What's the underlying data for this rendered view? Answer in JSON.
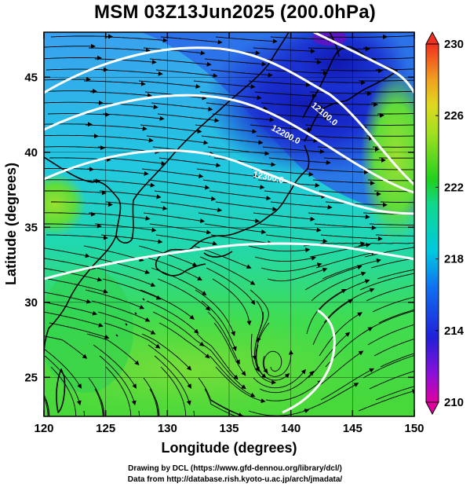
{
  "title": "MSM 03Z13Jun2025 (200.0hPa)",
  "map": {
    "lon_range": [
      120,
      150
    ],
    "lat_range": [
      22.4,
      48
    ],
    "xlabel": "Longitude (degrees)",
    "ylabel": "Latitude  (degrees)",
    "x_ticks": [
      "120",
      "125",
      "130",
      "135",
      "140",
      "145",
      "150"
    ],
    "x_tick_values": [
      120,
      125,
      130,
      135,
      140,
      145,
      150
    ],
    "y_ticks": [
      "25",
      "30",
      "35",
      "40",
      "45"
    ],
    "y_tick_values": [
      25,
      30,
      35,
      40,
      45
    ],
    "contour_labels": [
      "12100.0",
      "12200.0",
      "12300.0"
    ],
    "field_colors": {
      "low": "#1f2fd0",
      "mid": "#00d0d8",
      "high": "#40e040",
      "highest": "#a0e020"
    }
  },
  "colorbar": {
    "ticks": [
      "230",
      "226",
      "222",
      "218",
      "214",
      "210"
    ],
    "tick_values": [
      230,
      226,
      222,
      218,
      214,
      210
    ],
    "range": [
      210,
      230
    ],
    "stops": [
      "#e0008a",
      "#8a00d8",
      "#2020e0",
      "#1070f0",
      "#00c8e0",
      "#00e0a0",
      "#20d020",
      "#80e020",
      "#d8e020",
      "#f0a020",
      "#f04020"
    ]
  },
  "credits": {
    "line1": "Drawing by DCL (https://www.gfd-dennou.org/library/dcl/)",
    "line2": "Data from http://database.rish.kyoto-u.ac.jp/arch/jmadata/"
  }
}
